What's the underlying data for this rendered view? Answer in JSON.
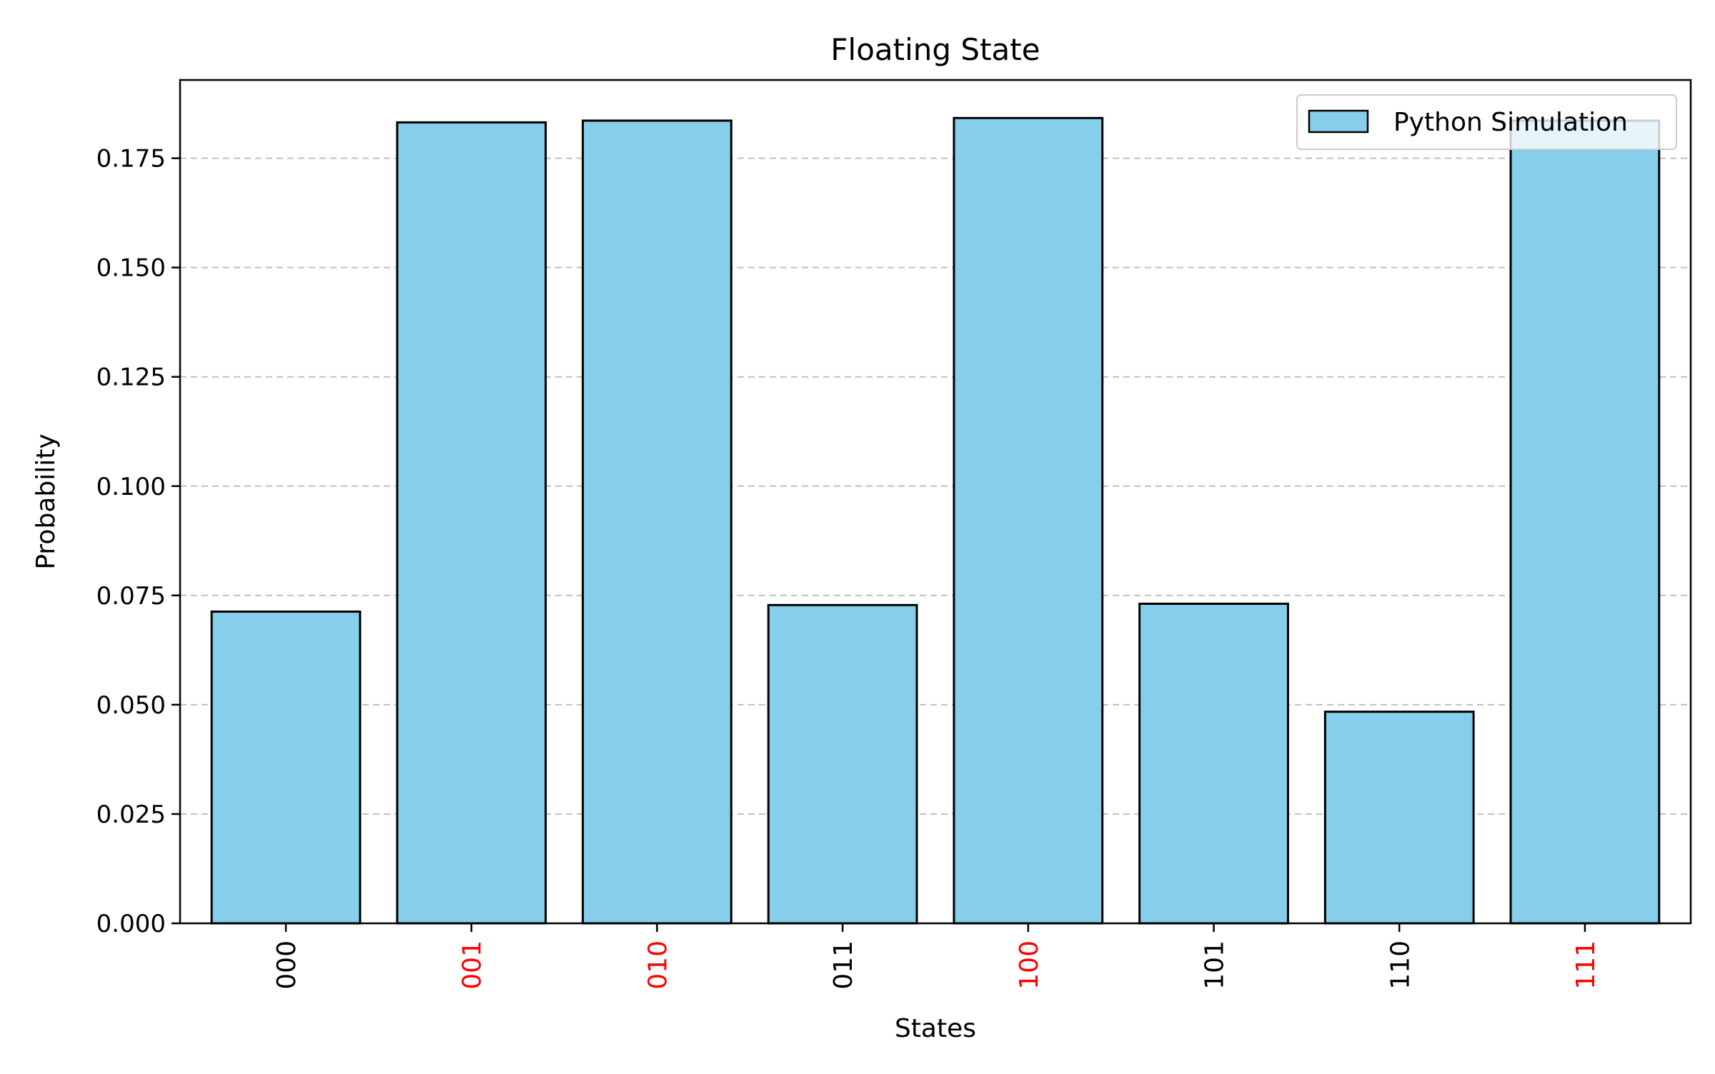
{
  "chart_data": {
    "type": "bar",
    "title": "Floating State",
    "xlabel": "States",
    "ylabel": "Probability",
    "categories": [
      "000",
      "001",
      "010",
      "011",
      "100",
      "101",
      "110",
      "111"
    ],
    "category_label_colors": [
      "#000000",
      "#ff0000",
      "#ff0000",
      "#000000",
      "#ff0000",
      "#000000",
      "#000000",
      "#ff0000"
    ],
    "series": [
      {
        "name": "Python Simulation",
        "values": [
          0.0713,
          0.1832,
          0.1836,
          0.0728,
          0.1842,
          0.0731,
          0.0484,
          0.1836
        ],
        "color": "#87ceeb",
        "edge_color": "#000000"
      }
    ],
    "ylim": [
      0,
      0.1929
    ],
    "yticks": [
      0.0,
      0.025,
      0.05,
      0.075,
      0.1,
      0.125,
      0.15,
      0.175
    ],
    "ytick_labels": [
      "0.000",
      "0.025",
      "0.050",
      "0.075",
      "0.100",
      "0.125",
      "0.150",
      "0.175"
    ],
    "grid": {
      "axis": "y",
      "style": "dashed",
      "color": "#c0c0c0"
    },
    "legend": {
      "position": "top-right"
    },
    "xtick_rotation": "vertical"
  }
}
